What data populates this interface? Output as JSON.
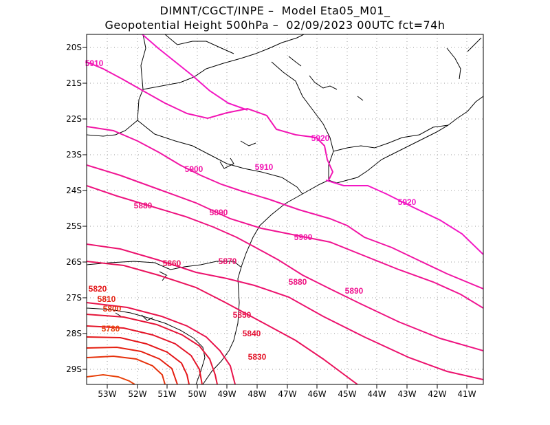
{
  "title_line1": "DIMNT/CGCT/INPE –  Model Eta05_M01_",
  "title_line2": "Geopotential Height 500hPa –  02/09/2023 00UTC fct=74h",
  "lat_labels": [
    "20S",
    "21S",
    "22S",
    "23S",
    "24S",
    "25S",
    "26S",
    "27S",
    "28S",
    "29S"
  ],
  "lon_labels": [
    "53W",
    "52W",
    "51W",
    "50W",
    "49W",
    "48W",
    "47W",
    "46W",
    "45W",
    "44W",
    "43W",
    "42W",
    "41W"
  ],
  "contours": [
    {
      "value": 5780,
      "label": "5780",
      "color": "#e8410a"
    },
    {
      "value": 5800,
      "label": "5800",
      "color": "#e6300a"
    },
    {
      "value": 5810,
      "label": "5810",
      "color": "#e52010"
    },
    {
      "value": 5820,
      "label": "5820",
      "color": "#e41518"
    },
    {
      "value": 5830,
      "label": "5830",
      "color": "#e41528"
    },
    {
      "value": 5840,
      "label": "5840",
      "color": "#e51438"
    },
    {
      "value": 5850,
      "label": "5850",
      "color": "#e8124a"
    },
    {
      "value": 5860,
      "label": "5860",
      "color": "#ea125c"
    },
    {
      "value": 5870,
      "label": "5870",
      "color": "#ec126e"
    },
    {
      "value": 5880,
      "label": "5880",
      "color": "#ee1380"
    },
    {
      "value": 5890,
      "label": "5890",
      "color": "#f01492"
    },
    {
      "value": 5900,
      "label": "5900",
      "color": "#f115a4"
    },
    {
      "value": 5910,
      "label": "5910",
      "color": "#f216b4"
    },
    {
      "value": 5920,
      "label": "5920",
      "color": "#f317c4"
    }
  ],
  "colors": {
    "frame": "#000000",
    "grid": "#9a9a9a",
    "coast": "#000000"
  }
}
